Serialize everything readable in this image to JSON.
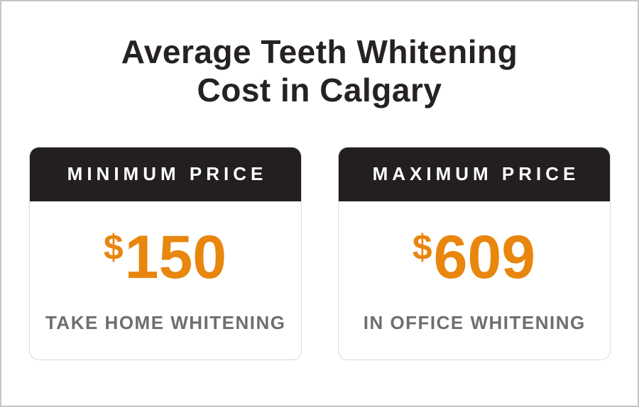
{
  "title": {
    "line1": "Average Teeth Whitening",
    "line2": "Cost in Calgary"
  },
  "cards": [
    {
      "header": "MINIMUM PRICE",
      "currency": "$",
      "amount": "150",
      "label": "TAKE HOME WHITENING"
    },
    {
      "header": "MAXIMUM PRICE",
      "currency": "$",
      "amount": "609",
      "label": "IN OFFICE WHITENING"
    }
  ],
  "colors": {
    "accent_orange": "#e8860d",
    "header_black": "#231f20",
    "title_black": "#262223",
    "label_gray": "#6d6e71",
    "card_border_gray": "#d9d9d9",
    "frame_border_gray": "#c5c5c5"
  },
  "chart_data": {
    "type": "table",
    "title": "Average Teeth Whitening Cost in Calgary",
    "categories": [
      "Minimum Price",
      "Maximum Price"
    ],
    "values": [
      150,
      609
    ],
    "value_unit": "$ (CAD)",
    "annotations": [
      "Take Home Whitening",
      "In Office Whitening"
    ]
  }
}
